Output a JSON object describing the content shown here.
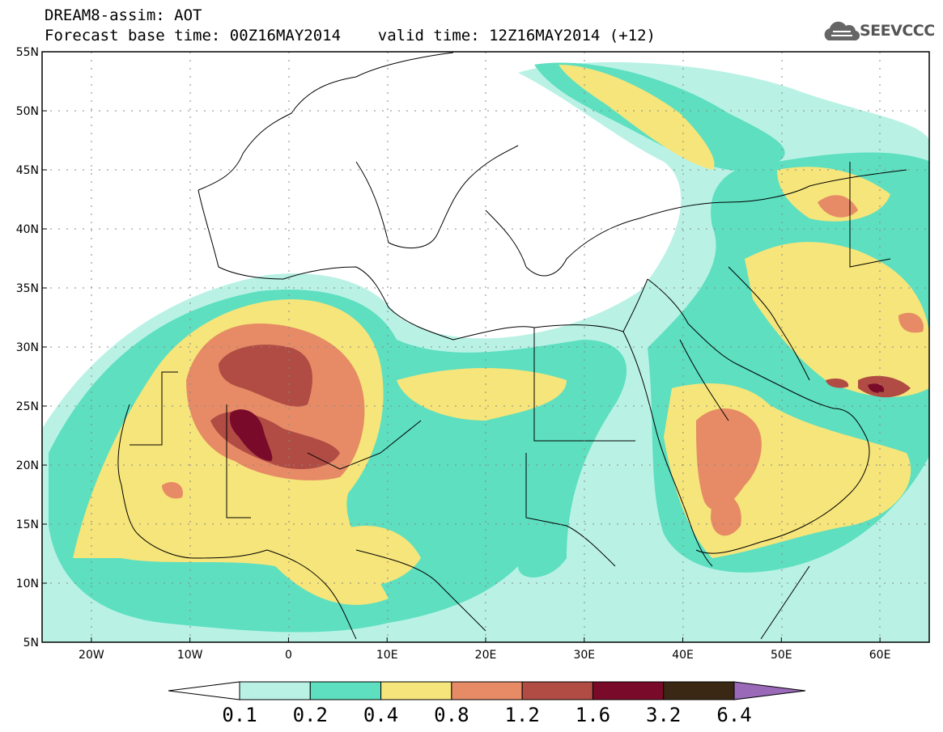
{
  "title": {
    "line1": "DREAM8-assim: AOT",
    "line2": "Forecast base time: 00Z16MAY2014    valid time: 12Z16MAY2014 (+12)"
  },
  "logo": {
    "text": "SEEVCCC",
    "icon": "cloud-icon"
  },
  "map": {
    "lon_range": [
      -25,
      65
    ],
    "lat_range": [
      5,
      55
    ],
    "lat_ticks": [
      "5N",
      "10N",
      "15N",
      "20N",
      "25N",
      "30N",
      "35N",
      "40N",
      "45N",
      "50N",
      "55N"
    ],
    "lon_ticks": [
      "20W",
      "10W",
      "0",
      "10E",
      "20E",
      "30E",
      "40E",
      "50E",
      "60E"
    ],
    "grid": "dotted"
  },
  "colorbar": {
    "labels": [
      "0.1",
      "0.2",
      "0.4",
      "0.8",
      "1.2",
      "1.6",
      "3.2",
      "6.4"
    ],
    "colors": [
      "#ffffff",
      "#b9f2e5",
      "#5ddfc0",
      "#f6e57a",
      "#e68b66",
      "#b04c44",
      "#7a0a2a",
      "#3b2814",
      "#9a6ab8"
    ]
  }
}
